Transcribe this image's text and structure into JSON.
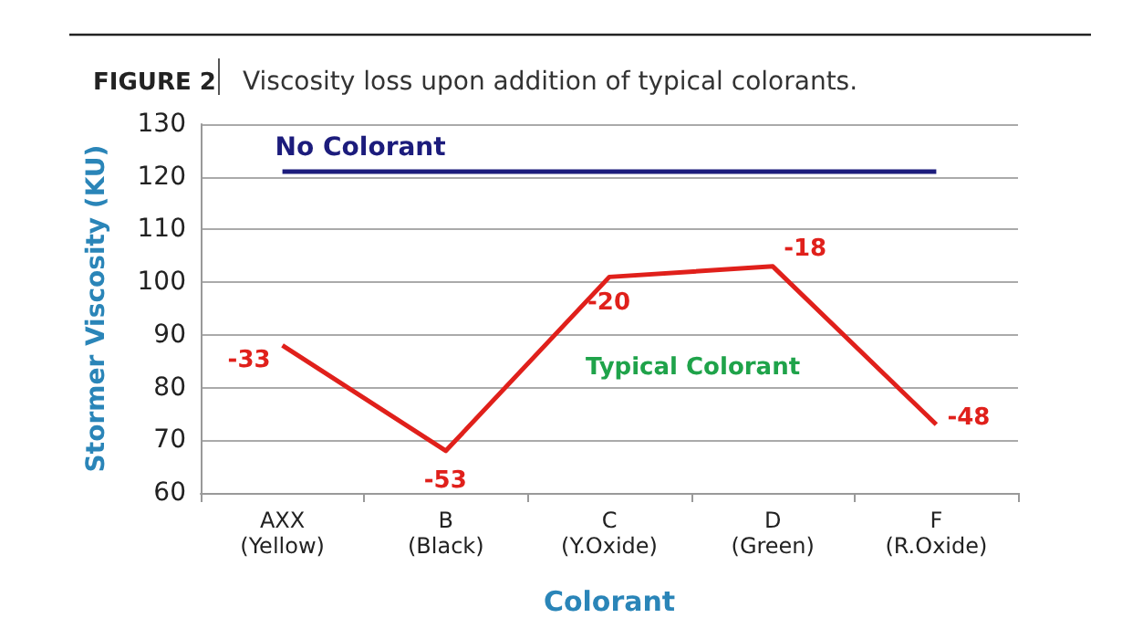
{
  "chart_data": {
    "type": "line",
    "title": "FIGURE 2",
    "subtitle": "Viscosity loss upon addition of typical colorants.",
    "xlabel": "Colorant",
    "ylabel": "Stormer Viscosity (KU)",
    "categories": [
      "AXX\n(Yellow)",
      "B\n(Black)",
      "C\n(Y.Oxide)",
      "D\n(Green)",
      "F\n(R.Oxide)"
    ],
    "series": [
      {
        "name": "No Colorant",
        "color": "#1c1c7c",
        "values": [
          121,
          121,
          121,
          121,
          121
        ]
      },
      {
        "name": "Typical Colorant",
        "color": "#e0201b",
        "values": [
          88,
          68,
          101,
          103,
          73
        ]
      }
    ],
    "annotations": [
      {
        "text": "-33",
        "x": "AXX\n(Yellow)",
        "y": 88
      },
      {
        "text": "-53",
        "x": "B\n(Black)",
        "y": 68
      },
      {
        "text": "-20",
        "x": "C\n(Y.Oxide)",
        "y": 101
      },
      {
        "text": "-18",
        "x": "D\n(Green)",
        "y": 103
      },
      {
        "text": "-48",
        "x": "F\n(R.Oxide)",
        "y": 73
      }
    ],
    "ylim": [
      60,
      130
    ],
    "yticks": [
      60,
      70,
      80,
      90,
      100,
      110,
      120,
      130
    ],
    "grid": "y",
    "legend": false,
    "marker": "none",
    "line_style": "solid"
  }
}
